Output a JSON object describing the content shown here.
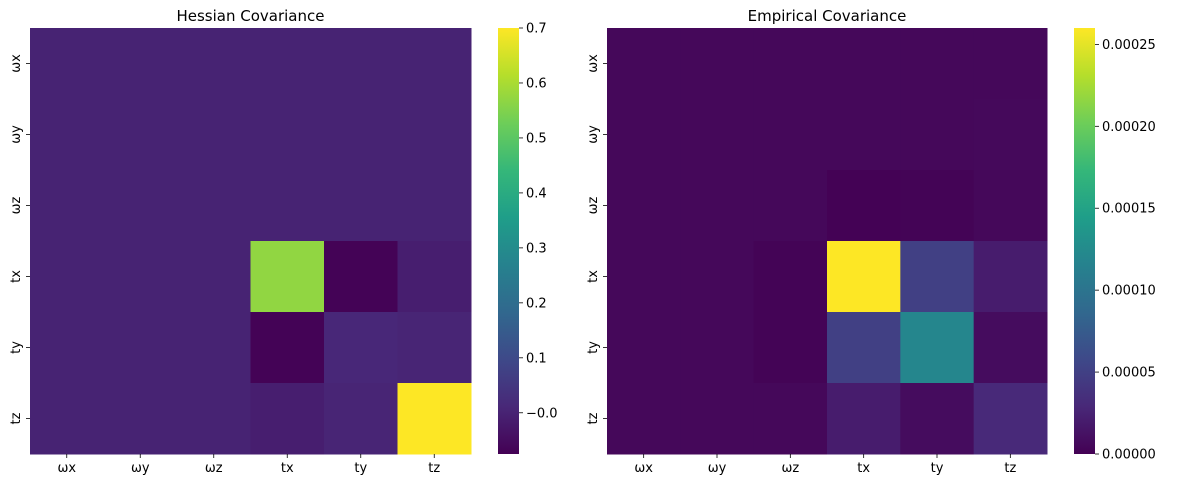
{
  "chart_data": [
    {
      "type": "heatmap",
      "title": "Hessian Covariance",
      "xlabel": "",
      "ylabel": "",
      "x_categories": [
        "ωx",
        "ωy",
        "ωz",
        "tx",
        "ty",
        "tz"
      ],
      "y_categories": [
        "ωx",
        "ωy",
        "ωz",
        "tx",
        "ty",
        "tz"
      ],
      "values": [
        [
          0.0,
          0.0,
          0.0,
          0.0,
          0.0,
          0.0
        ],
        [
          0.0,
          0.0,
          0.0,
          0.0,
          0.0,
          0.0
        ],
        [
          0.0,
          0.0,
          0.0,
          0.0,
          0.0,
          0.0
        ],
        [
          0.0,
          0.0,
          0.0,
          0.57,
          -0.07,
          -0.01
        ],
        [
          0.0,
          0.0,
          0.0,
          -0.07,
          0.01,
          0.005
        ],
        [
          0.0,
          0.0,
          0.0,
          -0.01,
          0.005,
          0.7
        ]
      ],
      "colormap": "viridis",
      "vmin": -0.075,
      "vmax": 0.7,
      "colorbar_ticks": [
        -0.0,
        0.1,
        0.2,
        0.3,
        0.4,
        0.5,
        0.6,
        0.7
      ],
      "colorbar_tick_labels": [
        "−0.0",
        "0.1",
        "0.2",
        "0.3",
        "0.4",
        "0.5",
        "0.6",
        "0.7"
      ]
    },
    {
      "type": "heatmap",
      "title": "Empirical Covariance",
      "xlabel": "",
      "ylabel": "",
      "x_categories": [
        "ωx",
        "ωy",
        "ωz",
        "tx",
        "ty",
        "tz"
      ],
      "y_categories": [
        "ωx",
        "ωy",
        "ωz",
        "tx",
        "ty",
        "tz"
      ],
      "values": [
        [
          5e-06,
          5e-06,
          5e-06,
          5e-06,
          5e-06,
          5e-06
        ],
        [
          5e-06,
          5e-06,
          5e-06,
          5e-06,
          5e-06,
          6e-06
        ],
        [
          5e-06,
          5e-06,
          5e-06,
          1e-06,
          2e-06,
          5e-06
        ],
        [
          5e-06,
          5e-06,
          2e-06,
          0.00026,
          5e-05,
          2e-05
        ],
        [
          5e-06,
          5e-06,
          2e-06,
          5e-05,
          0.00012,
          8e-06
        ],
        [
          5e-06,
          5e-06,
          5e-06,
          2e-05,
          8e-06,
          3e-05
        ]
      ],
      "colormap": "viridis",
      "vmin": 0.0,
      "vmax": 0.00026,
      "colorbar_ticks": [
        0.0,
        5e-05,
        0.0001,
        0.00015,
        0.0002,
        0.00025
      ],
      "colorbar_tick_labels": [
        "0.00000",
        "0.00005",
        "0.00010",
        "0.00015",
        "0.00020",
        "0.00025"
      ]
    }
  ]
}
